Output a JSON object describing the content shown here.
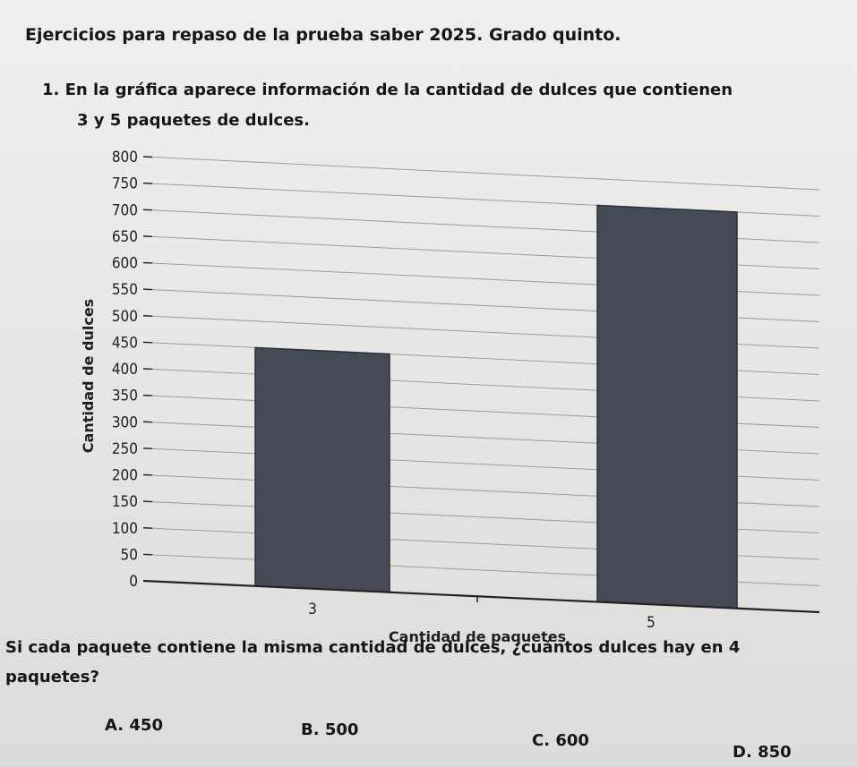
{
  "title": "Ejercicios para repaso de la prueba saber 2025. Grado quinto.",
  "question": {
    "line1": "1. En la gráfica aparece información de la cantidad de dulces que contienen",
    "line2": "3 y 5 paquetes de dulces."
  },
  "follow_up": {
    "line1": "Si cada paquete contiene la misma cantidad de dulces, ¿cuántos dulces hay en 4",
    "line2": "paquetes?"
  },
  "options": [
    {
      "letter": "A.",
      "value": "450"
    },
    {
      "letter": "B.",
      "value": "500"
    },
    {
      "letter": "C.",
      "value": "600"
    },
    {
      "letter": "D.",
      "value": "850"
    }
  ],
  "chart_data": {
    "type": "bar",
    "categories": [
      "3",
      "5"
    ],
    "values": [
      450,
      750
    ],
    "xlabel": "Cantidad de paquetes",
    "ylabel": "Cantidad de dulces",
    "ylim": [
      0,
      800
    ],
    "yticks": [
      0,
      50,
      100,
      150,
      200,
      250,
      300,
      350,
      400,
      450,
      500,
      550,
      600,
      650,
      700,
      750,
      800
    ],
    "grid": true,
    "bar_color": "#454a56"
  }
}
